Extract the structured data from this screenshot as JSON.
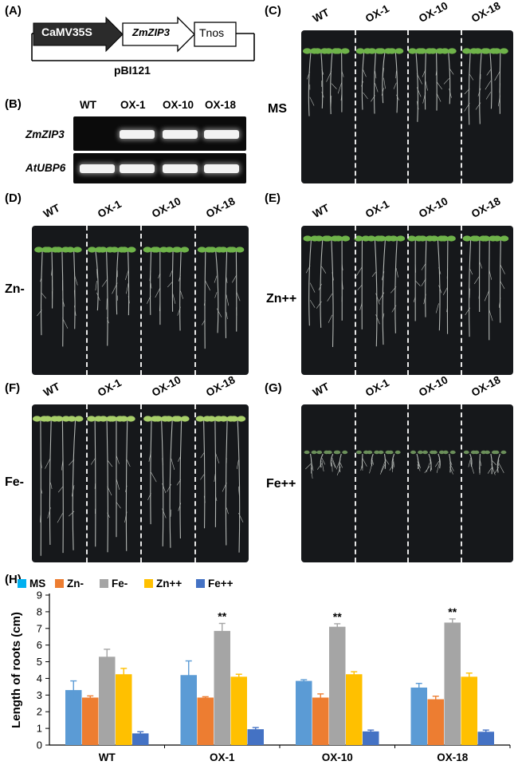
{
  "panels": {
    "A": "(A)",
    "B": "(B)",
    "C": "(C)",
    "D": "(D)",
    "E": "(E)",
    "F": "(F)",
    "G": "(G)",
    "H": "(H)"
  },
  "construct": {
    "promoter": "CaMV35S",
    "gene": "ZmZIP3",
    "terminator": "Tnos",
    "vector": "pBI121"
  },
  "gel": {
    "lanes": [
      "WT",
      "OX-1",
      "OX-10",
      "OX-18"
    ],
    "genes": [
      "ZmZIP3",
      "AtUBP6"
    ]
  },
  "plates": {
    "columns": [
      "WT",
      "OX-1",
      "OX-10",
      "OX-18"
    ],
    "conditions": {
      "C": "MS",
      "D": "Zn-",
      "E": "Zn++",
      "F": "Fe-",
      "G": "Fe++"
    }
  },
  "colors": {
    "MS": "#5b9bd5",
    "Zn-": "#ed7d31",
    "Fe-": "#a5a5a5",
    "Zn++": "#ffc000",
    "Fe++": "#4472c4",
    "legend_MS": "#00b0f0"
  },
  "chart_data": {
    "type": "bar",
    "categories": [
      "WT",
      "OX-1",
      "OX-10",
      "OX-18"
    ],
    "series": [
      {
        "name": "MS",
        "values": [
          3.3,
          4.2,
          3.85,
          3.45
        ],
        "errors": [
          0.55,
          0.85,
          0.07,
          0.25
        ]
      },
      {
        "name": "Zn-",
        "values": [
          2.85,
          2.85,
          2.85,
          2.75
        ],
        "errors": [
          0.1,
          0.05,
          0.22,
          0.18
        ]
      },
      {
        "name": "Fe-",
        "values": [
          5.3,
          6.85,
          7.1,
          7.35
        ],
        "errors": [
          0.45,
          0.45,
          0.18,
          0.22
        ]
      },
      {
        "name": "Zn++",
        "values": [
          4.25,
          4.1,
          4.25,
          4.1
        ],
        "errors": [
          0.35,
          0.15,
          0.15,
          0.22
        ]
      },
      {
        "name": "Fe++",
        "values": [
          0.7,
          0.95,
          0.82,
          0.8
        ],
        "errors": [
          0.1,
          0.1,
          0.08,
          0.1
        ]
      }
    ],
    "significance": {
      "series": "Fe-",
      "marks": [
        "",
        "**",
        "**",
        "**"
      ]
    },
    "ylabel": "Length of roots  (cm)",
    "ylim": [
      0,
      9
    ],
    "yticks": [
      0,
      1,
      2,
      3,
      4,
      5,
      6,
      7,
      8,
      9
    ],
    "legend": "top-left",
    "grid": false
  }
}
